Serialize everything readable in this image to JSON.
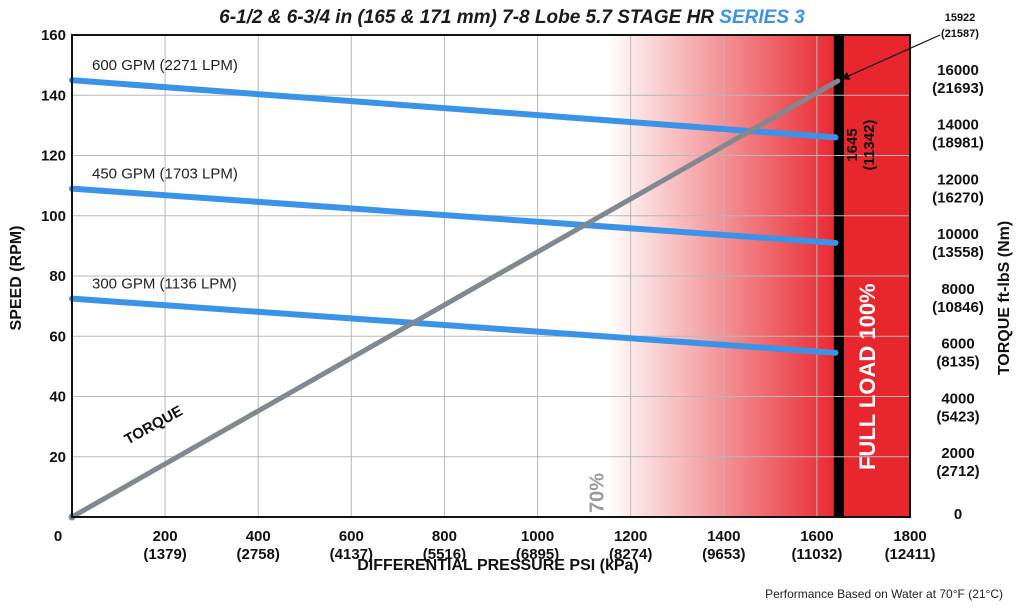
{
  "chart_data": {
    "type": "line",
    "title": "6-1/2 & 6-3/4 in (165 & 171 mm) 7-8 Lobe 5.7 STAGE HR ",
    "title_accent": "SERIES 3",
    "xlabel": "DIFFERENTIAL PRESSURE  PSI (kPa)",
    "ylabel_left": "SPEED (RPM)",
    "ylabel_right": "TORQUE  ft-lbS (Nm)",
    "note": "Performance Based on Water at 70°F (21°C)",
    "xlim": [
      0,
      1800
    ],
    "ylim_left": [
      0,
      160
    ],
    "ylim_right": [
      0,
      17600
    ],
    "grid": true,
    "x_ticks": [
      {
        "value": 0,
        "label": "0",
        "sub": ""
      },
      {
        "value": 200,
        "label": "200",
        "sub": "(1379)"
      },
      {
        "value": 400,
        "label": "400",
        "sub": "(2758)"
      },
      {
        "value": 600,
        "label": "600",
        "sub": "(4137)"
      },
      {
        "value": 800,
        "label": "800",
        "sub": "(5516)"
      },
      {
        "value": 1000,
        "label": "1000",
        "sub": "(6895)"
      },
      {
        "value": 1200,
        "label": "1200",
        "sub": "(8274)"
      },
      {
        "value": 1400,
        "label": "1400",
        "sub": "(9653)"
      },
      {
        "value": 1600,
        "label": "1600",
        "sub": "(11032)"
      },
      {
        "value": 1800,
        "label": "1800",
        "sub": "(12411)"
      }
    ],
    "y_left_ticks": [
      20,
      40,
      60,
      80,
      100,
      120,
      140,
      160
    ],
    "y_left_zero_label": "0",
    "y_right_ticks": [
      {
        "value": 0,
        "label": "0",
        "sub": ""
      },
      {
        "value": 2000,
        "label": "2000",
        "sub": "(2712)"
      },
      {
        "value": 4000,
        "label": "4000",
        "sub": "(5423)"
      },
      {
        "value": 6000,
        "label": "6000",
        "sub": "(8135)"
      },
      {
        "value": 8000,
        "label": "8000",
        "sub": "(10846)"
      },
      {
        "value": 10000,
        "label": "10000",
        "sub": "(13558)"
      },
      {
        "value": 12000,
        "label": "12000",
        "sub": "(16270)"
      },
      {
        "value": 14000,
        "label": "14000",
        "sub": "(18981)"
      },
      {
        "value": 16000,
        "label": "16000",
        "sub": "(21693)"
      }
    ],
    "series": [
      {
        "name": "600 GPM (2271 LPM)",
        "color": "#3b93e8",
        "axis": "left",
        "x": [
          0,
          1640
        ],
        "y": [
          145,
          126
        ]
      },
      {
        "name": "450 GPM (1703 LPM)",
        "color": "#3b93e8",
        "axis": "left",
        "x": [
          0,
          1640
        ],
        "y": [
          109,
          91
        ]
      },
      {
        "name": "300 GPM (1136 LPM)",
        "color": "#3b93e8",
        "axis": "left",
        "x": [
          0,
          1640
        ],
        "y": [
          72.5,
          54.5
        ]
      },
      {
        "name": "TORQUE",
        "color": "#808890",
        "axis": "right",
        "x": [
          0,
          1645
        ],
        "y": [
          0,
          15922
        ]
      }
    ],
    "zones": {
      "gradient_start": 1150,
      "full_load_start": 1645,
      "zone_color": "#e8262e",
      "full_load_bar_color": "#000000",
      "label_70": "70%",
      "label_full": "FULL LOAD 100%"
    },
    "annotations": {
      "max_pressure": "1645",
      "max_pressure_sub": "(11342)",
      "max_torque": "15922",
      "max_torque_sub": "(21587)"
    }
  }
}
